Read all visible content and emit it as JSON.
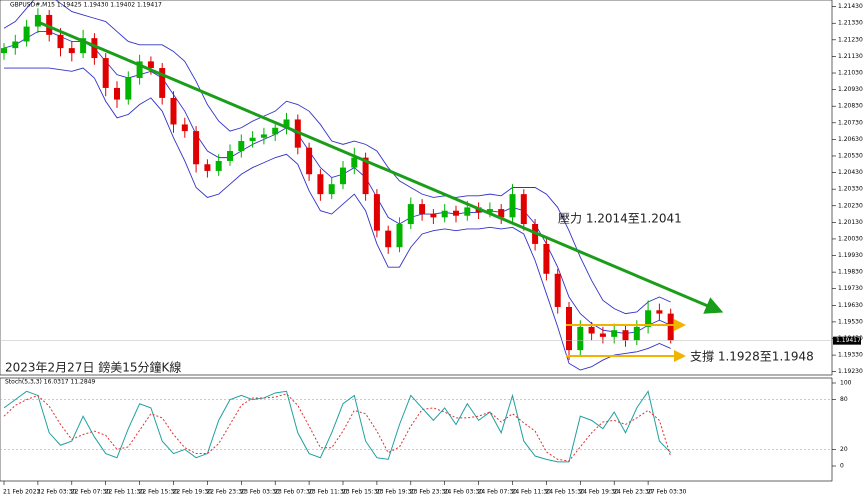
{
  "chart_data": [
    {
      "type": "candlestick",
      "title": "GBPUSD#,M15  1.19425 1.19430 1.19402 1.19417",
      "x_labels": [
        "21 Feb 2023",
        "22 Feb 03:30",
        "22 Feb 07:30",
        "22 Feb 11:30",
        "22 Feb 15:30",
        "22 Feb 19:30",
        "22 Feb 23:30",
        "23 Feb 03:30",
        "23 Feb 07:30",
        "23 Feb 11:30",
        "23 Feb 15:30",
        "23 Feb 19:30",
        "23 Feb 23:30",
        "24 Feb 03:30",
        "24 Feb 07:30",
        "24 Feb 11:30",
        "24 Feb 15:30",
        "24 Feb 19:30",
        "24 Feb 23:30",
        "27 Feb 03:30"
      ],
      "open": [
        1.2115,
        1.2118,
        1.2122,
        1.2131,
        1.2138,
        1.2126,
        1.2118,
        1.2115,
        1.2124,
        1.2112,
        1.2094,
        1.2087,
        1.21,
        1.211,
        1.2106,
        1.2088,
        1.2072,
        1.2068,
        1.2048,
        1.2044,
        1.205,
        1.2056,
        1.2062,
        1.2064,
        1.2066,
        1.207,
        1.2075,
        1.2058,
        1.2042,
        1.203,
        1.2036,
        1.2046,
        1.2052,
        1.203,
        1.2008,
        1.1998,
        1.2012,
        1.2024,
        1.2018,
        1.2016,
        1.202,
        1.2017,
        1.2022,
        1.2019,
        1.2021,
        1.2016,
        1.203,
        1.2012,
        1.2,
        1.1982,
        1.1962,
        1.1936,
        1.195,
        1.1946,
        1.1944,
        1.1948,
        1.1942,
        1.195,
        1.196,
        1.1958
      ],
      "high": [
        1.2121,
        1.2126,
        1.2135,
        1.2142,
        1.2141,
        1.213,
        1.2122,
        1.2129,
        1.2127,
        1.2115,
        1.2098,
        1.2104,
        1.2114,
        1.2113,
        1.2109,
        1.2092,
        1.2076,
        1.2071,
        1.2051,
        1.2054,
        1.206,
        1.2066,
        1.2068,
        1.207,
        1.2074,
        1.2079,
        1.2078,
        1.2061,
        1.2045,
        1.204,
        1.205,
        1.2058,
        1.2055,
        1.2033,
        1.2011,
        1.2016,
        1.2028,
        1.2027,
        1.2021,
        1.2024,
        1.2023,
        1.2026,
        1.2025,
        1.2025,
        1.2024,
        1.2036,
        1.2033,
        1.2015,
        1.2003,
        1.1985,
        1.1965,
        1.1954,
        1.1953,
        1.195,
        1.1952,
        1.1951,
        1.1954,
        1.1966,
        1.1964,
        1.1961
      ],
      "low": [
        1.2111,
        1.2114,
        1.2119,
        1.2127,
        1.2122,
        1.2113,
        1.211,
        1.2112,
        1.2108,
        1.2089,
        1.2082,
        1.2084,
        1.2096,
        1.2102,
        1.2084,
        1.2067,
        1.2064,
        1.2043,
        1.204,
        1.2041,
        1.2047,
        1.2052,
        1.2058,
        1.206,
        1.2062,
        1.2066,
        1.2054,
        1.2038,
        1.2026,
        1.2027,
        1.2033,
        1.2042,
        1.2026,
        1.2004,
        1.1994,
        1.1995,
        1.2009,
        1.2014,
        1.2012,
        1.2013,
        1.2013,
        1.2014,
        1.2015,
        1.2016,
        1.2012,
        1.2013,
        1.2008,
        1.1996,
        1.1978,
        1.1958,
        1.193,
        1.1932,
        1.1942,
        1.194,
        1.194,
        1.1938,
        1.1939,
        1.1946,
        1.1954,
        1.194
      ],
      "close": [
        1.2118,
        1.2122,
        1.2131,
        1.2138,
        1.2126,
        1.2118,
        1.2115,
        1.2124,
        1.2112,
        1.2094,
        1.2087,
        1.21,
        1.211,
        1.2106,
        1.2088,
        1.2072,
        1.2068,
        1.2048,
        1.2044,
        1.205,
        1.2056,
        1.2062,
        1.2064,
        1.2066,
        1.207,
        1.2075,
        1.2058,
        1.2042,
        1.203,
        1.2036,
        1.2046,
        1.2052,
        1.203,
        1.2008,
        1.1998,
        1.2012,
        1.2024,
        1.2018,
        1.2016,
        1.202,
        1.2017,
        1.2022,
        1.2019,
        1.2021,
        1.2016,
        1.203,
        1.2012,
        1.2,
        1.1982,
        1.1962,
        1.1936,
        1.195,
        1.1946,
        1.1944,
        1.1948,
        1.1942,
        1.195,
        1.196,
        1.1958,
        1.1942
      ],
      "up_color": "#00b400",
      "down_color": "#e00000",
      "bands": {
        "color": "#3232c8",
        "upper": [
          1.213,
          1.2134,
          1.2142,
          1.215,
          1.215,
          1.2145,
          1.214,
          1.2138,
          1.2136,
          1.2134,
          1.2128,
          1.2122,
          1.212,
          1.212,
          1.212,
          1.2116,
          1.211,
          1.2098,
          1.2084,
          1.2074,
          1.2068,
          1.207,
          1.2074,
          1.2077,
          1.208,
          1.2086,
          1.2084,
          1.208,
          1.2072,
          1.2062,
          1.206,
          1.2062,
          1.206,
          1.2056,
          1.2046,
          1.2038,
          1.2034,
          1.203,
          1.2028,
          1.2029,
          1.2028,
          1.2029,
          1.2029,
          1.203,
          1.2029,
          1.2034,
          1.2034,
          1.2034,
          1.203,
          1.2022,
          1.2008,
          1.1992,
          1.1978,
          1.1966,
          1.1961,
          1.1958,
          1.1959,
          1.1965,
          1.1968,
          1.1965
        ],
        "middle": [
          1.2118,
          1.212,
          1.2124,
          1.2128,
          1.2128,
          1.2125,
          1.2122,
          1.2122,
          1.2118,
          1.211,
          1.2102,
          1.21,
          1.2102,
          1.2104,
          1.21,
          1.209,
          1.208,
          1.2066,
          1.2056,
          1.2052,
          1.2052,
          1.2056,
          1.206,
          1.2063,
          1.2066,
          1.207,
          1.2066,
          1.2056,
          1.2046,
          1.204,
          1.2042,
          1.2046,
          1.204,
          1.2028,
          1.2016,
          1.2012,
          1.2016,
          1.2018,
          1.2018,
          1.2019,
          1.2018,
          1.2019,
          1.2019,
          1.202,
          1.2019,
          1.2022,
          1.202,
          1.2012,
          1.2,
          1.1986,
          1.1968,
          1.1958,
          1.1952,
          1.1948,
          1.1947,
          1.1946,
          1.1947,
          1.1951,
          1.1954,
          1.1951
        ],
        "lower": [
          1.2106,
          1.2106,
          1.2106,
          1.2106,
          1.2106,
          1.2105,
          1.2104,
          1.2106,
          1.21,
          1.2086,
          1.2076,
          1.2078,
          1.2084,
          1.2088,
          1.208,
          1.2064,
          1.205,
          1.2034,
          1.2028,
          1.203,
          1.2036,
          1.2042,
          1.2046,
          1.2049,
          1.2052,
          1.2054,
          1.2048,
          1.2032,
          1.202,
          1.2018,
          1.2024,
          1.203,
          1.202,
          1.2,
          1.1986,
          1.1986,
          1.1998,
          1.2006,
          1.2008,
          1.2009,
          1.2008,
          1.2009,
          1.2009,
          1.201,
          1.2009,
          1.201,
          1.2006,
          1.199,
          1.197,
          1.195,
          1.1928,
          1.1924,
          1.1926,
          1.193,
          1.1933,
          1.1934,
          1.1935,
          1.1937,
          1.194,
          1.1937
        ]
      },
      "ylim": [
        1.1921,
        1.2147
      ],
      "yticks": [
        {
          "value": 1.2143,
          "label": "1.21430"
        },
        {
          "value": 1.2133,
          "label": "1.21330"
        },
        {
          "value": 1.2123,
          "label": "1.21230"
        },
        {
          "value": 1.2113,
          "label": "1.21130"
        },
        {
          "value": 1.2103,
          "label": "1.21030"
        },
        {
          "value": 1.2093,
          "label": "1.20930"
        },
        {
          "value": 1.2083,
          "label": "1.20830"
        },
        {
          "value": 1.2073,
          "label": "1.20730"
        },
        {
          "value": 1.2063,
          "label": "1.20630"
        },
        {
          "value": 1.2053,
          "label": "1.20530"
        },
        {
          "value": 1.2043,
          "label": "1.20430"
        },
        {
          "value": 1.2033,
          "label": "1.20330"
        },
        {
          "value": 1.2023,
          "label": "1.20230"
        },
        {
          "value": 1.2013,
          "label": "1.20130"
        },
        {
          "value": 1.2003,
          "label": "1.20030"
        },
        {
          "value": 1.1993,
          "label": "1.19930"
        },
        {
          "value": 1.1983,
          "label": "1.19830"
        },
        {
          "value": 1.1973,
          "label": "1.19730"
        },
        {
          "value": 1.1963,
          "label": "1.19630"
        },
        {
          "value": 1.1953,
          "label": "1.19530"
        },
        {
          "value": 1.1943,
          "label": "1.19430"
        },
        {
          "value": 1.1933,
          "label": "1.19330"
        },
        {
          "value": 1.1923,
          "label": "1.19230"
        }
      ],
      "current_price": {
        "value": 1.19417,
        "label": "1.19417"
      },
      "annotations": [
        "壓力 1.2014至1.2041",
        "支撐 1.1928至1.1948",
        "2023年2月27日 鎊美15分鐘K線"
      ]
    },
    {
      "type": "line",
      "title": "Stoch(5,3,3) 16.0317 11.2849",
      "series": [
        {
          "color": "#20a0a0",
          "dash": false,
          "values": [
            70,
            80,
            90,
            85,
            40,
            25,
            30,
            60,
            35,
            15,
            10,
            45,
            75,
            70,
            30,
            15,
            20,
            10,
            15,
            55,
            80,
            85,
            80,
            82,
            88,
            90,
            40,
            15,
            10,
            40,
            75,
            85,
            30,
            10,
            8,
            50,
            85,
            70,
            55,
            70,
            50,
            75,
            55,
            65,
            40,
            85,
            30,
            12,
            8,
            5,
            5,
            60,
            55,
            45,
            65,
            40,
            70,
            90,
            30,
            16.03
          ]
        },
        {
          "color": "#e03030",
          "dash": true,
          "values": [
            60,
            73,
            80,
            85,
            72,
            50,
            32,
            38,
            42,
            37,
            20,
            23,
            43,
            63,
            58,
            38,
            22,
            15,
            15,
            27,
            50,
            73,
            82,
            82,
            83,
            87,
            73,
            48,
            22,
            22,
            42,
            67,
            63,
            42,
            16,
            23,
            48,
            68,
            70,
            65,
            58,
            58,
            60,
            65,
            53,
            63,
            52,
            42,
            17,
            8,
            6,
            23,
            40,
            53,
            55,
            50,
            58,
            67,
            55,
            11.28
          ]
        }
      ],
      "ylim": [
        0,
        100
      ],
      "yticks": [
        100,
        80,
        20,
        0
      ],
      "levels": [
        80,
        20
      ]
    }
  ]
}
